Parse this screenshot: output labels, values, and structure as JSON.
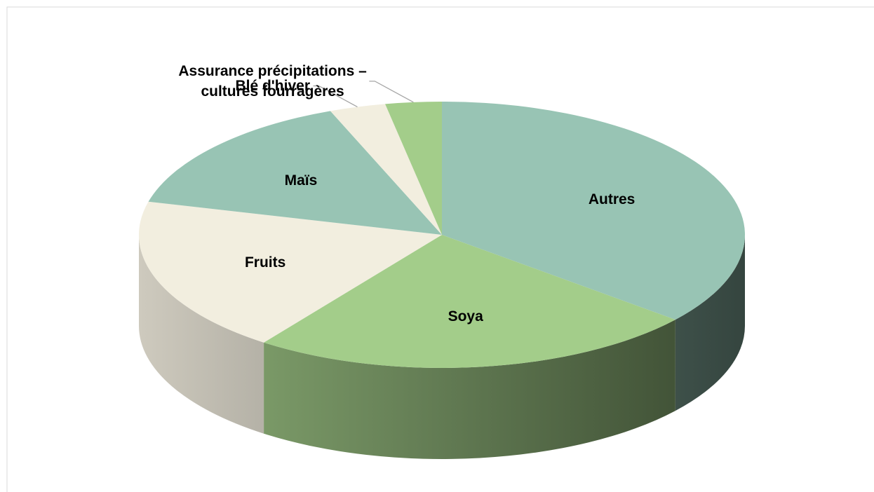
{
  "chart_data": {
    "type": "pie3d",
    "categories": [
      "Autres",
      "Soya",
      "Fruits",
      "Maïs",
      "Blé d'hiver",
      "Assurance précipitations –\ncultures fourragères"
    ],
    "values": [
      36,
      24,
      19,
      15,
      3,
      3
    ],
    "colors": [
      "#98c4b4",
      "#a3cd8a",
      "#f2eedf",
      "#98c4b4",
      "#f2eedf",
      "#a3cd8a"
    ]
  }
}
